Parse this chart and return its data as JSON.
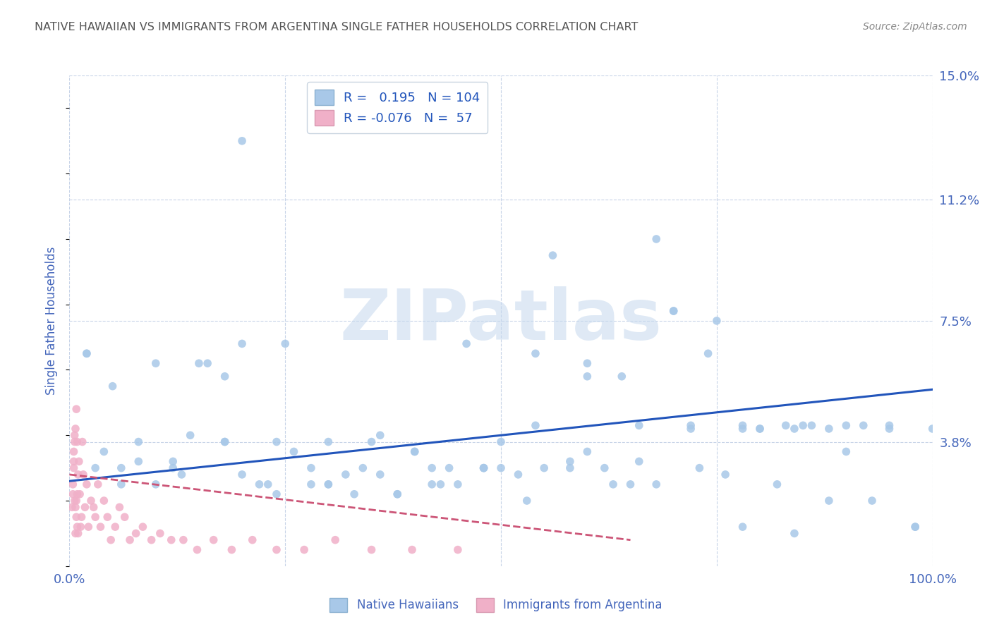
{
  "title": "NATIVE HAWAIIAN VS IMMIGRANTS FROM ARGENTINA SINGLE FATHER HOUSEHOLDS CORRELATION CHART",
  "source": "Source: ZipAtlas.com",
  "ylabel": "Single Father Households",
  "xlim": [
    0,
    1.0
  ],
  "ylim": [
    0,
    0.15
  ],
  "yticks": [
    0.038,
    0.075,
    0.112,
    0.15
  ],
  "ytick_labels": [
    "3.8%",
    "7.5%",
    "11.2%",
    "15.0%"
  ],
  "xticks": [
    0.0,
    1.0
  ],
  "xtick_labels": [
    "0.0%",
    "100.0%"
  ],
  "legend_labels": [
    "Native Hawaiians",
    "Immigrants from Argentina"
  ],
  "blue_color": "#a8c8e8",
  "pink_color": "#f0b0c8",
  "blue_line_color": "#2255bb",
  "pink_line_color": "#cc5577",
  "blue_R": 0.195,
  "blue_N": 104,
  "pink_R": -0.076,
  "pink_N": 57,
  "watermark": "ZIPatlas",
  "background_color": "#ffffff",
  "grid_color": "#c8d4e8",
  "title_color": "#555555",
  "axis_label_color": "#4466bb",
  "blue_scatter_x": [
    0.02,
    0.02,
    0.2,
    0.04,
    0.06,
    0.08,
    0.1,
    0.12,
    0.14,
    0.16,
    0.18,
    0.2,
    0.22,
    0.24,
    0.26,
    0.28,
    0.3,
    0.32,
    0.34,
    0.36,
    0.38,
    0.4,
    0.42,
    0.44,
    0.46,
    0.48,
    0.5,
    0.52,
    0.54,
    0.56,
    0.58,
    0.6,
    0.62,
    0.64,
    0.66,
    0.68,
    0.7,
    0.72,
    0.74,
    0.76,
    0.78,
    0.8,
    0.82,
    0.84,
    0.86,
    0.88,
    0.9,
    0.92,
    0.95,
    0.98,
    0.05,
    0.1,
    0.15,
    0.2,
    0.25,
    0.3,
    0.35,
    0.4,
    0.45,
    0.5,
    0.55,
    0.6,
    0.65,
    0.7,
    0.75,
    0.8,
    0.85,
    0.9,
    0.95,
    1.0,
    0.03,
    0.08,
    0.13,
    0.18,
    0.23,
    0.28,
    0.33,
    0.38,
    0.43,
    0.48,
    0.53,
    0.58,
    0.63,
    0.68,
    0.73,
    0.78,
    0.83,
    0.88,
    0.93,
    0.98,
    0.06,
    0.12,
    0.18,
    0.24,
    0.3,
    0.36,
    0.42,
    0.48,
    0.54,
    0.6,
    0.66,
    0.72,
    0.78,
    0.84
  ],
  "blue_scatter_y": [
    0.065,
    0.065,
    0.13,
    0.035,
    0.03,
    0.032,
    0.025,
    0.03,
    0.04,
    0.062,
    0.038,
    0.028,
    0.025,
    0.038,
    0.035,
    0.03,
    0.038,
    0.028,
    0.03,
    0.04,
    0.022,
    0.035,
    0.03,
    0.03,
    0.068,
    0.03,
    0.038,
    0.028,
    0.065,
    0.095,
    0.03,
    0.062,
    0.03,
    0.058,
    0.032,
    0.1,
    0.078,
    0.042,
    0.065,
    0.028,
    0.043,
    0.042,
    0.025,
    0.042,
    0.043,
    0.042,
    0.035,
    0.043,
    0.042,
    0.012,
    0.055,
    0.062,
    0.062,
    0.068,
    0.068,
    0.025,
    0.038,
    0.035,
    0.025,
    0.03,
    0.03,
    0.035,
    0.025,
    0.078,
    0.075,
    0.042,
    0.043,
    0.043,
    0.043,
    0.042,
    0.03,
    0.038,
    0.028,
    0.058,
    0.025,
    0.025,
    0.022,
    0.022,
    0.025,
    0.03,
    0.02,
    0.032,
    0.025,
    0.025,
    0.03,
    0.042,
    0.043,
    0.02,
    0.02,
    0.012,
    0.025,
    0.032,
    0.038,
    0.022,
    0.025,
    0.028,
    0.025,
    0.03,
    0.043,
    0.058,
    0.043,
    0.043,
    0.012,
    0.01
  ],
  "pink_scatter_x": [
    0.004,
    0.005,
    0.005,
    0.006,
    0.006,
    0.007,
    0.007,
    0.008,
    0.008,
    0.009,
    0.009,
    0.01,
    0.01,
    0.011,
    0.012,
    0.013,
    0.014,
    0.015,
    0.016,
    0.018,
    0.02,
    0.022,
    0.025,
    0.028,
    0.03,
    0.033,
    0.036,
    0.04,
    0.044,
    0.048,
    0.053,
    0.058,
    0.064,
    0.07,
    0.077,
    0.085,
    0.095,
    0.105,
    0.118,
    0.132,
    0.148,
    0.167,
    0.188,
    0.212,
    0.24,
    0.272,
    0.308,
    0.35,
    0.397,
    0.45,
    0.003,
    0.004,
    0.005,
    0.006,
    0.007,
    0.008,
    0.009
  ],
  "pink_scatter_y": [
    0.025,
    0.032,
    0.035,
    0.02,
    0.04,
    0.018,
    0.042,
    0.015,
    0.048,
    0.022,
    0.038,
    0.01,
    0.028,
    0.032,
    0.022,
    0.012,
    0.015,
    0.038,
    0.028,
    0.018,
    0.025,
    0.012,
    0.02,
    0.018,
    0.015,
    0.025,
    0.012,
    0.02,
    0.015,
    0.008,
    0.012,
    0.018,
    0.015,
    0.008,
    0.01,
    0.012,
    0.008,
    0.01,
    0.008,
    0.008,
    0.005,
    0.008,
    0.005,
    0.008,
    0.005,
    0.005,
    0.008,
    0.005,
    0.005,
    0.005,
    0.018,
    0.022,
    0.03,
    0.038,
    0.01,
    0.02,
    0.012
  ]
}
